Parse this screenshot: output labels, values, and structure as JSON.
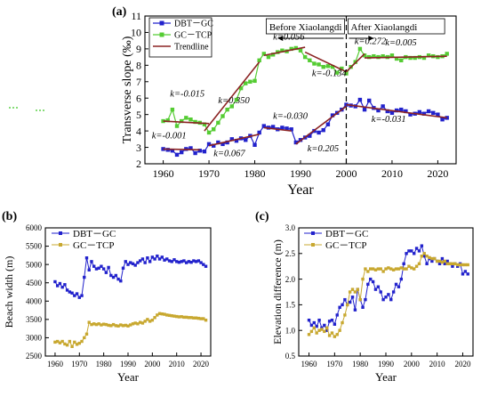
{
  "chart_data": [
    {
      "panel": "(a)",
      "type": "line",
      "xlabel": "Year",
      "ylabel": "Transverse slope (‰)",
      "xlim": [
        1956,
        2024
      ],
      "ylim": [
        2,
        11
      ],
      "xticks": [
        1960,
        1970,
        1980,
        1990,
        2000,
        2010,
        2020
      ],
      "yticks": [
        2,
        3,
        4,
        5,
        6,
        7,
        8,
        9,
        10,
        11
      ],
      "legend_position": "top-left",
      "legend": [
        "DBT－GC",
        "GC－TCP",
        "Trendline"
      ],
      "periods": {
        "divider_year": 2000,
        "before": "Before Xiaolangdi",
        "after": "After Xiaolangdi"
      },
      "series": [
        {
          "name": "DBT－GC",
          "color": "#2222cc",
          "marker": "square",
          "x": [
            1960,
            1961,
            1962,
            1963,
            1964,
            1965,
            1966,
            1967,
            1968,
            1969,
            1970,
            1971,
            1972,
            1973,
            1974,
            1975,
            1976,
            1977,
            1978,
            1979,
            1980,
            1981,
            1982,
            1983,
            1984,
            1985,
            1986,
            1987,
            1988,
            1989,
            1990,
            1991,
            1992,
            1993,
            1994,
            1995,
            1996,
            1997,
            1998,
            1999,
            2000,
            2001,
            2002,
            2003,
            2004,
            2005,
            2006,
            2007,
            2008,
            2009,
            2010,
            2011,
            2012,
            2013,
            2014,
            2015,
            2016,
            2017,
            2018,
            2019,
            2020,
            2021,
            2022
          ],
          "y": [
            2.9,
            2.85,
            2.8,
            2.55,
            2.7,
            2.9,
            2.95,
            2.65,
            2.8,
            2.75,
            3.2,
            3.1,
            3.3,
            3.2,
            3.3,
            3.5,
            3.4,
            3.55,
            3.45,
            3.7,
            3.15,
            3.9,
            4.3,
            4.2,
            4.25,
            4.1,
            4.2,
            4.15,
            4.1,
            3.3,
            3.45,
            3.6,
            3.7,
            4.0,
            3.9,
            4.05,
            4.4,
            4.95,
            5.1,
            5.3,
            5.6,
            5.55,
            5.5,
            5.9,
            5.3,
            5.85,
            5.4,
            5.25,
            5.5,
            5.2,
            5.1,
            5.25,
            5.3,
            5.2,
            5.0,
            5.05,
            5.15,
            5.05,
            5.2,
            5.1,
            5.0,
            4.7,
            4.8
          ]
        },
        {
          "name": "GC－TCP",
          "color": "#55cc33",
          "marker": "square",
          "x": [
            1960,
            1961,
            1962,
            1963,
            1964,
            1965,
            1966,
            1967,
            1968,
            1969,
            1970,
            1971,
            1972,
            1973,
            1974,
            1975,
            1976,
            1977,
            1978,
            1979,
            1980,
            1981,
            1982,
            1983,
            1984,
            1985,
            1986,
            1987,
            1988,
            1989,
            1990,
            1991,
            1992,
            1993,
            1994,
            1995,
            1996,
            1997,
            1998,
            1999,
            2000,
            2001,
            2002,
            2003,
            2004,
            2005,
            2006,
            2007,
            2008,
            2009,
            2010,
            2011,
            2012,
            2013,
            2014,
            2015,
            2016,
            2017,
            2018,
            2019,
            2020,
            2021,
            2022
          ],
          "y": [
            4.6,
            4.65,
            5.3,
            4.3,
            4.6,
            4.8,
            4.7,
            4.55,
            4.5,
            4.4,
            3.9,
            4.1,
            4.5,
            4.9,
            5.3,
            5.5,
            5.9,
            6.6,
            6.9,
            7.0,
            7.05,
            8.3,
            8.7,
            8.5,
            8.65,
            8.8,
            8.9,
            8.85,
            9.0,
            9.05,
            8.9,
            8.5,
            8.3,
            8.1,
            8.05,
            7.9,
            7.95,
            7.9,
            7.55,
            7.8,
            7.5,
            7.9,
            8.2,
            9.0,
            8.6,
            8.5,
            8.55,
            8.5,
            8.55,
            8.5,
            8.6,
            8.4,
            8.3,
            8.5,
            8.45,
            8.45,
            8.5,
            8.45,
            8.6,
            8.55,
            8.5,
            8.55,
            8.7
          ]
        },
        {
          "name": "Trendline",
          "color": "#8b2323",
          "marker": "none",
          "segments": [
            {
              "points": [
                [
                  1960,
                  4.6
                ],
                [
                  1970,
                  4.45
                ]
              ],
              "k": "k=-0.015"
            },
            {
              "points": [
                [
                  1969,
                  4.0
                ],
                [
                  1981,
                  8.2
                ]
              ],
              "k": "k=0.350"
            },
            {
              "points": [
                [
                  1982,
                  8.6
                ],
                [
                  1991,
                  9.1
                ]
              ],
              "k": "k=0.056"
            },
            {
              "points": [
                [
                  1991,
                  8.8
                ],
                [
                  2000,
                  7.6
                ]
              ],
              "k": "k=-0.134"
            },
            {
              "points": [
                [
                  2000,
                  7.6
                ],
                [
                  2004,
                  8.7
                ]
              ],
              "k": "k=0.272"
            },
            {
              "points": [
                [
                  2004,
                  8.45
                ],
                [
                  2022,
                  8.55
                ]
              ],
              "k": "k=0.005"
            },
            {
              "points": [
                [
                  1960,
                  2.9
                ],
                [
                  1968,
                  2.85
                ]
              ],
              "k": "k=-0.001"
            },
            {
              "points": [
                [
                  1970,
                  3.1
                ],
                [
                  1981,
                  3.8
                ]
              ],
              "k": "k=0.067"
            },
            {
              "points": [
                [
                  1982,
                  4.2
                ],
                [
                  1988,
                  4.0
                ]
              ],
              "k": "k=-0.030"
            },
            {
              "points": [
                [
                  1989,
                  3.2
                ],
                [
                  2000,
                  5.5
                ]
              ],
              "k": "k=0.205"
            },
            {
              "points": [
                [
                  2000,
                  5.6
                ],
                [
                  2022,
                  4.8
                ]
              ],
              "k": "k=-0.031"
            }
          ]
        }
      ]
    },
    {
      "panel": "(b)",
      "type": "line",
      "xlabel": "Year",
      "ylabel": "Beach width (m)",
      "xlim": [
        1956,
        2024
      ],
      "ylim": [
        2500,
        6000
      ],
      "xticks": [
        1960,
        1970,
        1980,
        1990,
        2000,
        2010,
        2020
      ],
      "yticks": [
        2500,
        3000,
        3500,
        4000,
        4500,
        5000,
        5500,
        6000
      ],
      "legend_position": "top-left",
      "series": [
        {
          "name": "DBT－GC",
          "color": "#2222cc",
          "marker": "square",
          "x": [
            1960,
            1961,
            1962,
            1963,
            1964,
            1965,
            1966,
            1967,
            1968,
            1969,
            1970,
            1971,
            1972,
            1973,
            1974,
            1975,
            1976,
            1977,
            1978,
            1979,
            1980,
            1981,
            1982,
            1983,
            1984,
            1985,
            1986,
            1987,
            1988,
            1989,
            1990,
            1991,
            1992,
            1993,
            1994,
            1995,
            1996,
            1997,
            1998,
            1999,
            2000,
            2001,
            2002,
            2003,
            2004,
            2005,
            2006,
            2007,
            2008,
            2009,
            2010,
            2011,
            2012,
            2013,
            2014,
            2015,
            2016,
            2017,
            2018,
            2019,
            2020,
            2021,
            2022
          ],
          "y": [
            4530,
            4420,
            4480,
            4380,
            4450,
            4300,
            4250,
            4220,
            4150,
            4200,
            4100,
            4150,
            4650,
            5180,
            4850,
            5080,
            4950,
            4880,
            4900,
            4950,
            4880,
            4780,
            4920,
            4700,
            4650,
            4700,
            4600,
            4550,
            4900,
            5080,
            5000,
            5050,
            5020,
            4980,
            5050,
            5100,
            5150,
            5050,
            5180,
            5080,
            5200,
            5150,
            5230,
            5150,
            5200,
            5120,
            5150,
            5100,
            5080,
            5130,
            5080,
            5060,
            5080,
            5100,
            5050,
            5080,
            5060,
            5100,
            5080,
            5100,
            5050,
            5000,
            4950
          ]
        },
        {
          "name": "GC－TCP",
          "color": "#c8a830",
          "marker": "square",
          "x": [
            1960,
            1961,
            1962,
            1963,
            1964,
            1965,
            1966,
            1967,
            1968,
            1969,
            1970,
            1971,
            1972,
            1973,
            1974,
            1975,
            1976,
            1977,
            1978,
            1979,
            1980,
            1981,
            1982,
            1983,
            1984,
            1985,
            1986,
            1987,
            1988,
            1989,
            1990,
            1991,
            1992,
            1993,
            1994,
            1995,
            1996,
            1997,
            1998,
            1999,
            2000,
            2001,
            2002,
            2003,
            2004,
            2005,
            2006,
            2007,
            2008,
            2009,
            2010,
            2011,
            2012,
            2013,
            2014,
            2015,
            2016,
            2017,
            2018,
            2019,
            2020,
            2021,
            2022
          ],
          "y": [
            2880,
            2900,
            2860,
            2900,
            2830,
            2800,
            2900,
            2760,
            2880,
            2820,
            2850,
            2900,
            3000,
            3100,
            3420,
            3360,
            3380,
            3360,
            3380,
            3350,
            3370,
            3360,
            3340,
            3330,
            3360,
            3330,
            3320,
            3350,
            3330,
            3340,
            3320,
            3350,
            3380,
            3400,
            3380,
            3420,
            3400,
            3450,
            3500,
            3450,
            3480,
            3550,
            3620,
            3660,
            3650,
            3640,
            3620,
            3610,
            3600,
            3590,
            3580,
            3570,
            3575,
            3560,
            3560,
            3550,
            3550,
            3540,
            3540,
            3530,
            3520,
            3520,
            3480
          ]
        }
      ]
    },
    {
      "panel": "(c)",
      "type": "line",
      "xlabel": "Year",
      "ylabel": "Elevation difference (m)",
      "xlim": [
        1956,
        2024
      ],
      "ylim": [
        0.5,
        3.0
      ],
      "xticks": [
        1960,
        1970,
        1980,
        1990,
        2000,
        2010,
        2020
      ],
      "yticks": [
        0.5,
        1.0,
        1.5,
        2.0,
        2.5,
        3.0
      ],
      "legend_position": "top-left",
      "series": [
        {
          "name": "DBT－GC",
          "color": "#2222cc",
          "marker": "square",
          "x": [
            1960,
            1961,
            1962,
            1963,
            1964,
            1965,
            1966,
            1967,
            1968,
            1969,
            1970,
            1971,
            1972,
            1973,
            1974,
            1975,
            1976,
            1977,
            1978,
            1979,
            1980,
            1981,
            1982,
            1983,
            1984,
            1985,
            1986,
            1987,
            1988,
            1989,
            1990,
            1991,
            1992,
            1993,
            1994,
            1995,
            1996,
            1997,
            1998,
            1999,
            2000,
            2001,
            2002,
            2003,
            2004,
            2005,
            2006,
            2007,
            2008,
            2009,
            2010,
            2011,
            2012,
            2013,
            2014,
            2015,
            2016,
            2017,
            2018,
            2019,
            2020,
            2021,
            2022
          ],
          "y": [
            1.2,
            1.1,
            1.15,
            1.08,
            1.2,
            1.05,
            1.1,
            1.0,
            1.18,
            1.2,
            1.12,
            1.3,
            1.45,
            1.5,
            1.6,
            1.5,
            1.55,
            1.65,
            1.4,
            1.8,
            1.6,
            1.45,
            1.6,
            1.9,
            2.0,
            1.95,
            1.8,
            1.85,
            1.75,
            1.6,
            1.65,
            1.7,
            1.6,
            1.75,
            1.9,
            1.85,
            2.0,
            2.3,
            2.5,
            2.55,
            2.55,
            2.5,
            2.6,
            2.55,
            2.65,
            2.45,
            2.3,
            2.4,
            2.35,
            2.4,
            2.35,
            2.3,
            2.4,
            2.3,
            2.35,
            2.3,
            2.25,
            2.3,
            2.25,
            2.3,
            2.1,
            2.15,
            2.1
          ]
        },
        {
          "name": "GC－TCP",
          "color": "#c8a830",
          "marker": "square",
          "x": [
            1960,
            1961,
            1962,
            1963,
            1964,
            1965,
            1966,
            1967,
            1968,
            1969,
            1970,
            1971,
            1972,
            1973,
            1974,
            1975,
            1976,
            1977,
            1978,
            1979,
            1980,
            1981,
            1982,
            1983,
            1984,
            1985,
            1986,
            1987,
            1988,
            1989,
            1990,
            1991,
            1992,
            1993,
            1994,
            1995,
            1996,
            1997,
            1998,
            1999,
            2000,
            2001,
            2002,
            2003,
            2004,
            2005,
            2006,
            2007,
            2008,
            2009,
            2010,
            2011,
            2012,
            2013,
            2014,
            2015,
            2016,
            2017,
            2018,
            2019,
            2020,
            2021,
            2022
          ],
          "y": [
            0.92,
            0.98,
            1.05,
            0.95,
            1.0,
            1.02,
            0.98,
            1.05,
            0.9,
            0.95,
            0.88,
            0.92,
            1.0,
            1.15,
            1.3,
            1.5,
            1.75,
            1.8,
            1.75,
            1.8,
            1.6,
            2.0,
            2.2,
            2.15,
            2.2,
            2.2,
            2.18,
            2.2,
            2.2,
            2.15,
            2.2,
            2.22,
            2.2,
            2.18,
            2.2,
            2.2,
            2.22,
            2.2,
            2.2,
            2.25,
            2.22,
            2.2,
            2.25,
            2.3,
            2.45,
            2.5,
            2.45,
            2.42,
            2.4,
            2.4,
            2.35,
            2.35,
            2.33,
            2.35,
            2.3,
            2.3,
            2.3,
            2.3,
            2.28,
            2.28,
            2.28,
            2.28,
            2.28
          ]
        }
      ]
    }
  ]
}
